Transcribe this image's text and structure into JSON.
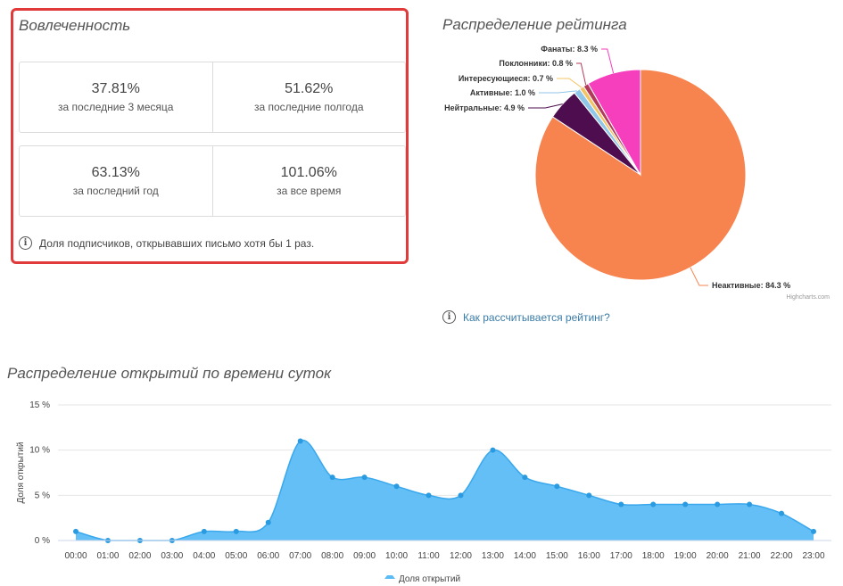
{
  "engagement": {
    "title": "Вовлеченность",
    "metrics": [
      {
        "value": "37.81%",
        "label": "за последние 3 месяца"
      },
      {
        "value": "51.62%",
        "label": "за последние полгода"
      },
      {
        "value": "63.13%",
        "label": "за последний год"
      },
      {
        "value": "101.06%",
        "label": "за все время"
      }
    ],
    "note": "Доля подписчиков, открывавших письмо хотя бы 1 раз."
  },
  "rating": {
    "title": "Распределение рейтинга",
    "help_link": "Как рассчитывается рейтинг?",
    "credits": "Highcharts.com"
  },
  "hours": {
    "title": "Распределение открытий по времени суток"
  },
  "colors": {
    "highlight_border": "#e03a3a",
    "area_fill": "#5bbcf5",
    "area_line": "#3aa8ec",
    "link": "#3a7ca8"
  },
  "chart_data": [
    {
      "type": "pie",
      "title": "Распределение рейтинга",
      "series": [
        {
          "data": [
            {
              "label": "Неактивные: 84.3 %",
              "value": 84.3,
              "color": "#f7834f"
            },
            {
              "label": "Нейтральные: 4.9 %",
              "value": 4.9,
              "color": "#4d0d4f"
            },
            {
              "label": "Активные: 1.0 %",
              "value": 1.0,
              "color": "#90c6e8"
            },
            {
              "label": "Интересующиеся: 0.7 %",
              "value": 0.7,
              "color": "#f3c465"
            },
            {
              "label": "Поклонники: 0.8 %",
              "value": 0.8,
              "color": "#b23a5a"
            },
            {
              "label": "Фанаты: 8.3 %",
              "value": 8.3,
              "color": "#f53fbd"
            }
          ]
        }
      ]
    },
    {
      "type": "area",
      "title": "Распределение открытий по времени суток",
      "ylabel": "Доля открытий",
      "ylim": [
        0,
        15
      ],
      "yticks": [
        "0 %",
        "5 %",
        "10 %",
        "15 %"
      ],
      "ytick_values": [
        0,
        5,
        10,
        15
      ],
      "categories": [
        "00:00",
        "01:00",
        "02:00",
        "03:00",
        "04:00",
        "05:00",
        "06:00",
        "07:00",
        "08:00",
        "09:00",
        "10:00",
        "11:00",
        "12:00",
        "13:00",
        "14:00",
        "15:00",
        "16:00",
        "17:00",
        "18:00",
        "19:00",
        "20:00",
        "21:00",
        "22:00",
        "23:00"
      ],
      "series": [
        {
          "name": "Доля открытий",
          "values": [
            1,
            0,
            0,
            0,
            1,
            1,
            2,
            11,
            7,
            7,
            6,
            5,
            5,
            10,
            7,
            6,
            5,
            4,
            4,
            4,
            4,
            4,
            3,
            1
          ]
        }
      ],
      "legend": "bottom-center"
    }
  ]
}
